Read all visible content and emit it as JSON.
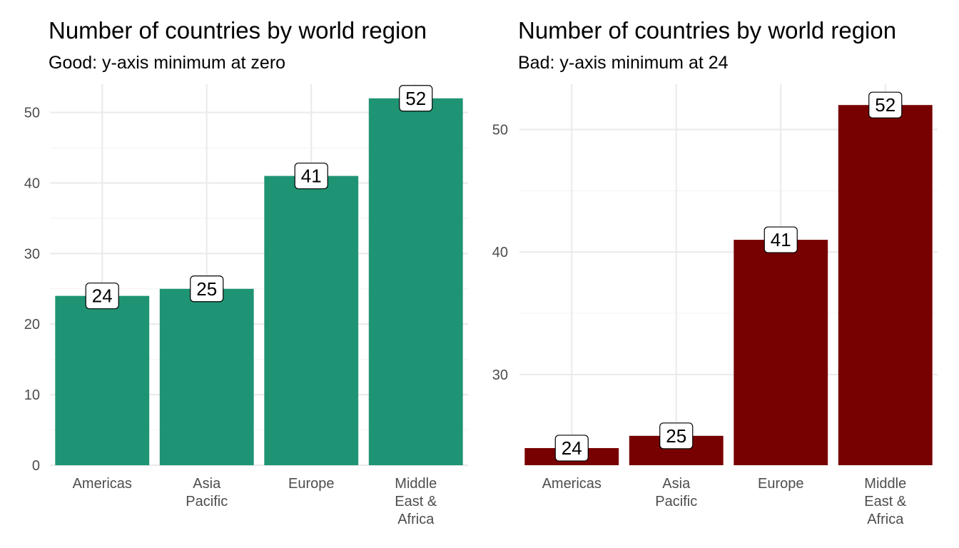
{
  "chart_data": [
    {
      "type": "bar",
      "title": "Number of countries by world region",
      "subtitle": "Good: y-axis minimum at zero",
      "categories": [
        [
          "Americas"
        ],
        [
          "Asia",
          "Pacific"
        ],
        [
          "Europe"
        ],
        [
          "Middle",
          "East &",
          "Africa"
        ]
      ],
      "values": [
        24,
        25,
        41,
        52
      ],
      "data_labels": [
        "24",
        "25",
        "41",
        "52"
      ],
      "ylim": [
        0,
        54
      ],
      "yticks": [
        0,
        10,
        20,
        30,
        40,
        50
      ],
      "ytick_labels": [
        "0",
        "10",
        "20",
        "30",
        "40",
        "50"
      ],
      "xlabel": "",
      "ylabel": "",
      "grid": true,
      "legend": "none",
      "bar_color": "#1f9474"
    },
    {
      "type": "bar",
      "title": "Number of countries by world region",
      "subtitle": "Bad: y-axis minimum at 24",
      "categories": [
        [
          "Americas"
        ],
        [
          "Asia",
          "Pacific"
        ],
        [
          "Europe"
        ],
        [
          "Middle",
          "East &",
          "Africa"
        ]
      ],
      "values": [
        24,
        25,
        41,
        52
      ],
      "data_labels": [
        "24",
        "25",
        "41",
        "52"
      ],
      "ylim": [
        22.6,
        53.7
      ],
      "yticks": [
        30,
        40,
        50
      ],
      "ytick_labels": [
        "30",
        "40",
        "50"
      ],
      "xlabel": "",
      "ylabel": "",
      "grid": true,
      "legend": "none",
      "bar_color": "#770000"
    }
  ]
}
